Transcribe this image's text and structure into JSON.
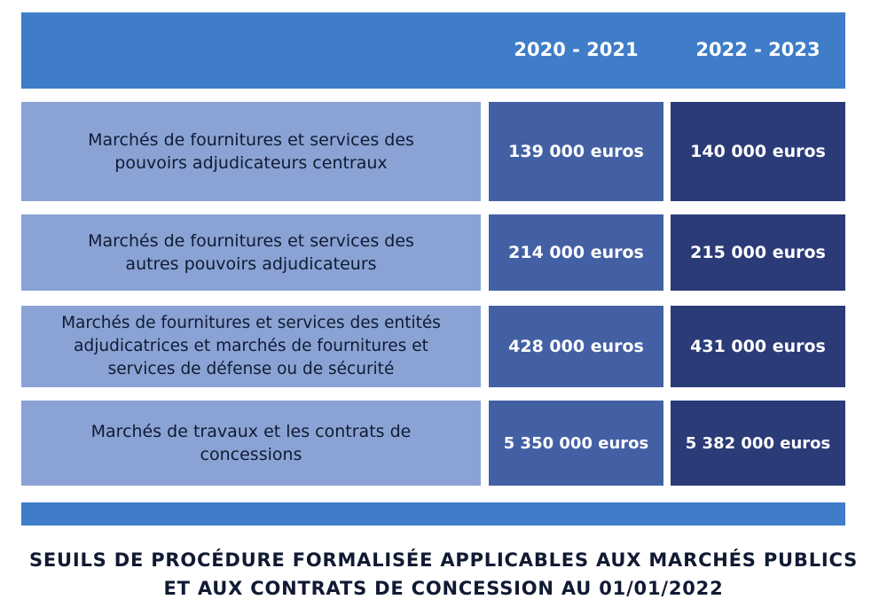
{
  "header": {
    "col_1": "2020 - 2021",
    "col_2": "2022 - 2023"
  },
  "rows": [
    {
      "label_lines": [
        "Marchés de fournitures et services des",
        "pouvoirs adjudicateurs centraux"
      ],
      "value_2020_2021": "139 000 euros",
      "value_2022_2023": "140 000 euros"
    },
    {
      "label_lines": [
        "Marchés de fournitures et services des",
        "autres pouvoirs adjudicateurs"
      ],
      "value_2020_2021": "214 000 euros",
      "value_2022_2023": "215 000 euros"
    },
    {
      "label_lines": [
        "Marchés de fournitures et services des entités",
        "adjudicatrices et marchés de fournitures et",
        "services de défense ou de sécurité"
      ],
      "value_2020_2021": "428 000 euros",
      "value_2022_2023": "431 000 euros"
    },
    {
      "label_lines": [
        "Marchés de travaux et les contrats de",
        "concessions"
      ],
      "value_2020_2021": "5 350 000 euros",
      "value_2022_2023": "5 382 000 euros"
    }
  ],
  "caption": {
    "line_1": "SEUILS DE PROCÉDURE FORMALISÉE APPLICABLES AUX MARCHÉS PUBLICS",
    "line_2": "ET AUX CONTRATS DE CONCESSION AU 01/01/2022"
  },
  "colors": {
    "header_blue": "#3f7dc9",
    "label_cell": "#8aa3d4",
    "value_cell_2020_2021": "#4360a4",
    "value_cell_2022_2023": "#2b3b78",
    "text_dark": "#111a33"
  }
}
